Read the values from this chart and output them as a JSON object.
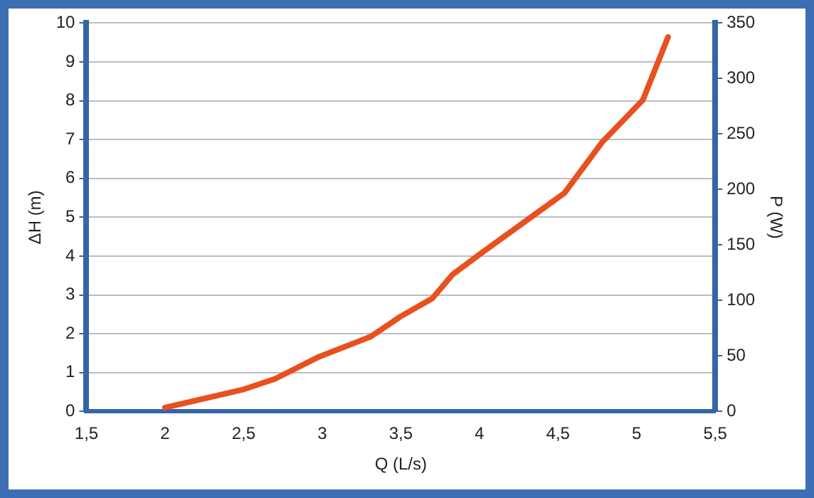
{
  "chart_data": {
    "type": "line",
    "xlabel": "Q (L/s)",
    "ylabel": "ΔH (m)",
    "y2label": "P (W)",
    "x": [
      2.0,
      2.5,
      2.7,
      2.98,
      3.31,
      3.5,
      3.7,
      3.83,
      4.02,
      4.54,
      4.78,
      5.04,
      5.2
    ],
    "series": [
      {
        "color": "#e8501e",
        "values": [
          0.1,
          0.57,
          0.84,
          1.41,
          1.93,
          2.45,
          2.91,
          3.53,
          4.1,
          5.62,
          6.93,
          8.02,
          9.64
        ]
      }
    ],
    "xlim": [
      1.5,
      5.5
    ],
    "xticks": [
      {
        "value": 1.5,
        "label": "1,5"
      },
      2,
      {
        "value": 2.5,
        "label": "2,5"
      },
      3,
      {
        "value": 3.5,
        "label": "3,5"
      },
      4,
      {
        "value": 4.5,
        "label": "4,5"
      },
      5,
      {
        "value": 5.5,
        "label": "5,5"
      }
    ],
    "ylim": [
      0,
      10
    ],
    "yticks": [
      0,
      1,
      2,
      3,
      4,
      5,
      6,
      7,
      8,
      9,
      10
    ],
    "y2lim": [
      0,
      350
    ],
    "y2ticks": [
      0,
      50,
      100,
      150,
      200,
      250,
      300,
      350
    ],
    "grid": "y",
    "legend": false,
    "marker": "none",
    "line_style": "solid"
  }
}
